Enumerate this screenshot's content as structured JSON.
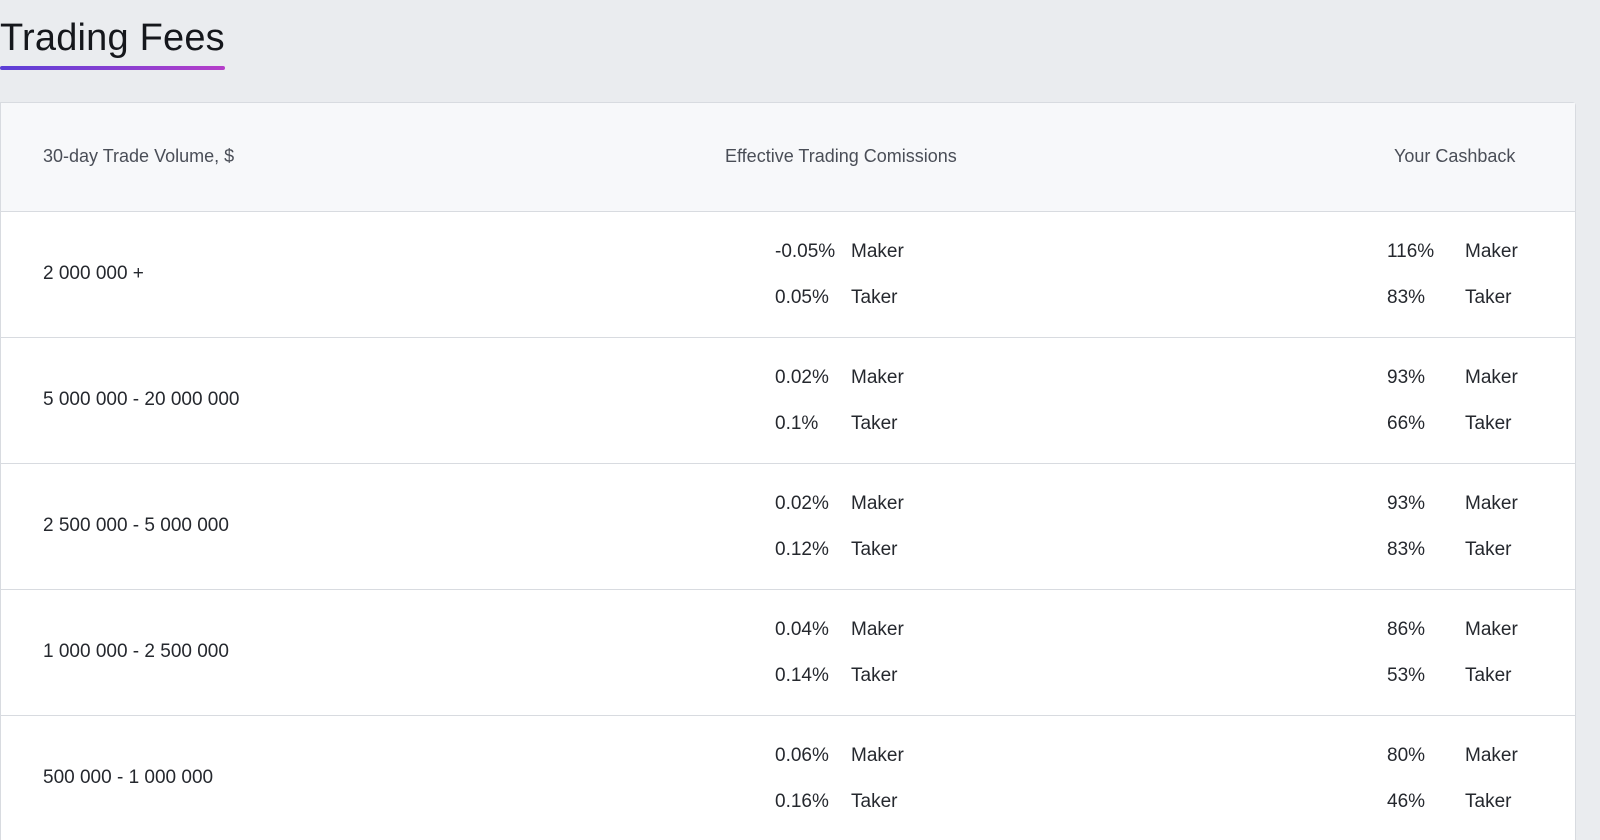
{
  "page": {
    "title": "Trading Fees"
  },
  "table": {
    "headers": {
      "volume": "30-day Trade Volume, $",
      "commissions": "Effective Trading Comissions",
      "cashback": "Your Cashback"
    },
    "rows": [
      {
        "volume": "2 000 000 +",
        "commission": {
          "maker_value": "-0.05%",
          "maker_label": "Maker",
          "taker_value": "0.05%",
          "taker_label": "Taker"
        },
        "cashback": {
          "maker_value": "116%",
          "maker_label": "Maker",
          "taker_value": "83%",
          "taker_label": "Taker"
        }
      },
      {
        "volume": "5 000 000 - 20 000 000",
        "commission": {
          "maker_value": "0.02%",
          "maker_label": "Maker",
          "taker_value": "0.1%",
          "taker_label": "Taker"
        },
        "cashback": {
          "maker_value": "93%",
          "maker_label": "Maker",
          "taker_value": "66%",
          "taker_label": "Taker"
        }
      },
      {
        "volume": "2 500 000 - 5 000 000",
        "commission": {
          "maker_value": "0.02%",
          "maker_label": "Maker",
          "taker_value": "0.12%",
          "taker_label": "Taker"
        },
        "cashback": {
          "maker_value": "93%",
          "maker_label": "Maker",
          "taker_value": "83%",
          "taker_label": "Taker"
        }
      },
      {
        "volume": "1 000 000 - 2 500 000",
        "commission": {
          "maker_value": "0.04%",
          "maker_label": "Maker",
          "taker_value": "0.14%",
          "taker_label": "Taker"
        },
        "cashback": {
          "maker_value": "86%",
          "maker_label": "Maker",
          "taker_value": "53%",
          "taker_label": "Taker"
        }
      },
      {
        "volume": "500 000 - 1 000 000",
        "commission": {
          "maker_value": "0.06%",
          "maker_label": "Maker",
          "taker_value": "0.16%",
          "taker_label": "Taker"
        },
        "cashback": {
          "maker_value": "80%",
          "maker_label": "Maker",
          "taker_value": "46%",
          "taker_label": "Taker"
        }
      }
    ]
  },
  "colors": {
    "background": "#eaecef",
    "accent_gradient_start": "#5b3fd6",
    "accent_gradient_end": "#b63ec9"
  }
}
